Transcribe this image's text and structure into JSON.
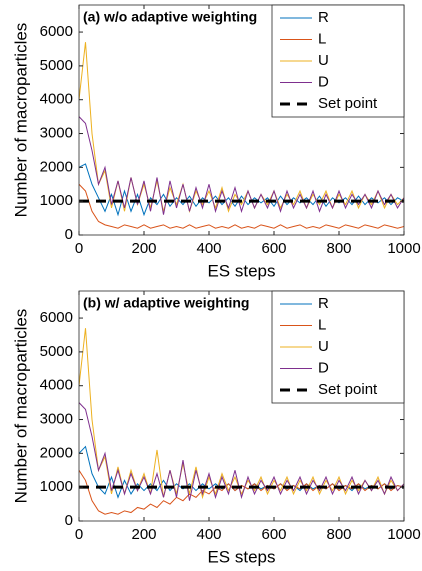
{
  "chart_data": [
    {
      "type": "line",
      "title": "(a) w/o adaptive weighting",
      "x_label": "ES steps",
      "y_label": "Number of macroparticles",
      "x": [
        0,
        20,
        40,
        60,
        80,
        100,
        120,
        140,
        160,
        180,
        200,
        220,
        240,
        260,
        280,
        300,
        320,
        340,
        360,
        380,
        400,
        420,
        440,
        460,
        480,
        500,
        520,
        540,
        560,
        580,
        600,
        620,
        640,
        660,
        680,
        700,
        720,
        740,
        760,
        780,
        800,
        820,
        840,
        860,
        880,
        900,
        920,
        940,
        960,
        980,
        1000
      ],
      "series": [
        {
          "name": "R",
          "color": "#0072bd",
          "values": [
            2000,
            2100,
            1500,
            1100,
            700,
            1200,
            600,
            1300,
            700,
            1200,
            600,
            1100,
            900,
            1200,
            850,
            1100,
            900,
            1150,
            850,
            1100,
            950,
            1150,
            900,
            1100,
            850,
            1150,
            900,
            1100,
            950,
            1100,
            850,
            1150,
            900,
            1100,
            950,
            1100,
            900,
            1150,
            850,
            1100,
            950,
            1100,
            900,
            1150,
            900,
            1100,
            950,
            1100,
            900,
            1100,
            1000
          ]
        },
        {
          "name": "L",
          "color": "#d95319",
          "values": [
            1500,
            1300,
            700,
            400,
            300,
            250,
            200,
            300,
            250,
            200,
            300,
            200,
            250,
            300,
            200,
            250,
            200,
            300,
            200,
            250,
            300,
            200,
            250,
            200,
            300,
            200,
            250,
            200,
            300,
            250,
            200,
            300,
            200,
            250,
            300,
            200,
            250,
            200,
            300,
            250,
            200,
            300,
            250,
            200,
            300,
            250,
            200,
            300,
            250,
            200,
            250
          ]
        },
        {
          "name": "U",
          "color": "#edb120",
          "values": [
            4000,
            5700,
            3000,
            1500,
            1900,
            800,
            1600,
            700,
            1700,
            900,
            1500,
            800,
            1600,
            700,
            1400,
            900,
            1500,
            700,
            1300,
            900,
            1300,
            800,
            1400,
            700,
            1200,
            900,
            1300,
            800,
            1200,
            900,
            1300,
            800,
            1200,
            900,
            1300,
            800,
            1200,
            900,
            1300,
            800,
            1200,
            900,
            1300,
            800,
            1200,
            900,
            1300,
            800,
            1200,
            900,
            1100
          ]
        },
        {
          "name": "D",
          "color": "#7e2f8e",
          "values": [
            3500,
            3300,
            2500,
            1500,
            2000,
            900,
            1600,
            800,
            1700,
            900,
            1600,
            700,
            1700,
            600,
            1600,
            800,
            1500,
            700,
            1400,
            800,
            1500,
            700,
            1300,
            800,
            1400,
            700,
            1300,
            800,
            1200,
            800,
            1300,
            700,
            1300,
            800,
            1200,
            800,
            1300,
            700,
            1200,
            800,
            1300,
            800,
            1200,
            900,
            1200,
            800,
            1300,
            900,
            1200,
            800,
            1100
          ]
        }
      ],
      "reference_line": {
        "name": "Set point",
        "value": 1000,
        "color": "#000000",
        "dash": true
      },
      "xlim": [
        0,
        1000
      ],
      "ylim": [
        0,
        6800
      ],
      "xticks": [
        0,
        200,
        400,
        600,
        800,
        1000
      ],
      "yticks": [
        0,
        1000,
        2000,
        3000,
        4000,
        5000,
        6000
      ],
      "legend": "upper right"
    },
    {
      "type": "line",
      "title": "(b) w/ adaptive weighting",
      "x_label": "ES steps",
      "y_label": "Number of macroparticles",
      "x": [
        0,
        20,
        40,
        60,
        80,
        100,
        120,
        140,
        160,
        180,
        200,
        220,
        240,
        260,
        280,
        300,
        320,
        340,
        360,
        380,
        400,
        420,
        440,
        460,
        480,
        500,
        520,
        540,
        560,
        580,
        600,
        620,
        640,
        660,
        680,
        700,
        720,
        740,
        760,
        780,
        800,
        820,
        840,
        860,
        880,
        900,
        920,
        940,
        960,
        980,
        1000
      ],
      "series": [
        {
          "name": "R",
          "color": "#0072bd",
          "values": [
            2000,
            2200,
            1400,
            1000,
            800,
            1300,
            700,
            1200,
            800,
            1100,
            900,
            1100,
            900,
            1200,
            900,
            1100,
            950,
            1100,
            900,
            1100,
            950,
            1100,
            950,
            1100,
            900,
            1050,
            950,
            1100,
            950,
            1050,
            950,
            1100,
            950,
            1050,
            900,
            1100,
            950,
            1050,
            950,
            1100,
            950,
            1050,
            900,
            1100,
            950,
            1050,
            950,
            1100,
            950,
            1050,
            1000
          ]
        },
        {
          "name": "L",
          "color": "#d95319",
          "values": [
            1500,
            1200,
            600,
            300,
            200,
            250,
            200,
            300,
            250,
            400,
            350,
            500,
            400,
            600,
            500,
            700,
            600,
            800,
            700,
            900,
            800,
            1000,
            900,
            1100,
            900,
            1050,
            950,
            1100,
            900,
            1050,
            950,
            1100,
            900,
            1050,
            950,
            1100,
            900,
            1050,
            950,
            1100,
            900,
            1050,
            950,
            1100,
            900,
            1050,
            950,
            1100,
            900,
            1050,
            1000
          ]
        },
        {
          "name": "U",
          "color": "#edb120",
          "values": [
            4000,
            5700,
            3000,
            1500,
            1900,
            800,
            1600,
            800,
            1500,
            900,
            1400,
            800,
            2100,
            700,
            1500,
            800,
            1700,
            800,
            1600,
            700,
            1300,
            800,
            1400,
            900,
            1300,
            800,
            1200,
            900,
            1300,
            800,
            1200,
            900,
            1300,
            800,
            1200,
            900,
            1300,
            800,
            1200,
            900,
            1300,
            800,
            1200,
            900,
            1200,
            900,
            1300,
            800,
            1200,
            900,
            1100
          ]
        },
        {
          "name": "D",
          "color": "#7e2f8e",
          "values": [
            3500,
            3300,
            2500,
            1500,
            2000,
            900,
            1500,
            800,
            1400,
            900,
            1300,
            800,
            1400,
            700,
            1500,
            700,
            1800,
            600,
            1500,
            800,
            1400,
            700,
            1300,
            800,
            1500,
            700,
            1300,
            800,
            1200,
            900,
            1300,
            800,
            1200,
            900,
            1300,
            800,
            1200,
            900,
            1300,
            800,
            1200,
            900,
            1300,
            800,
            1200,
            900,
            1200,
            800,
            1300,
            900,
            1100
          ]
        }
      ],
      "reference_line": {
        "name": "Set point",
        "value": 1000,
        "color": "#000000",
        "dash": true
      },
      "xlim": [
        0,
        1000
      ],
      "ylim": [
        0,
        6800
      ],
      "xticks": [
        0,
        200,
        400,
        600,
        800,
        1000
      ],
      "yticks": [
        0,
        1000,
        2000,
        3000,
        4000,
        5000,
        6000
      ],
      "legend": "upper right"
    }
  ]
}
